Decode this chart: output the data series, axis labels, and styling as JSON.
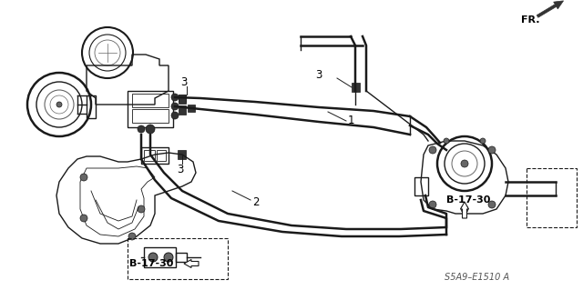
{
  "bg_color": "#ffffff",
  "fig_width": 6.4,
  "fig_height": 3.19,
  "dpi": 100,
  "diagram_code": "S5A9–E1510 A",
  "fr_label": "FR.",
  "b1730_label": "B-17-30",
  "line_color": "#1a1a1a",
  "label_color": "#000000",
  "gray_fill": "#888888",
  "dark_fill": "#333333",
  "mid_gray": "#666666"
}
